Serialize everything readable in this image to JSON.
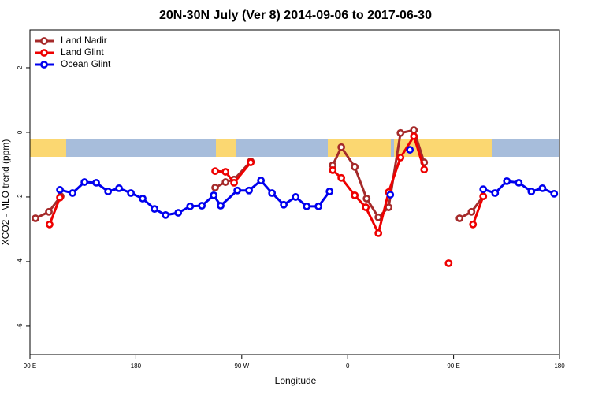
{
  "chart_data": {
    "type": "line",
    "title": "20N-30N July (Ver 8)   2014-09-06 to 2017-06-30",
    "x_label": "Longitude",
    "y_label": "XCO2 - MLO trend (ppm)",
    "xlim": [
      90,
      540
    ],
    "xticks": [
      {
        "value": 90,
        "label": "90 E"
      },
      {
        "value": 180,
        "label": "180"
      },
      {
        "value": 270,
        "label": "90 W"
      },
      {
        "value": 360,
        "label": "0"
      },
      {
        "value": 450,
        "label": "90 E"
      },
      {
        "value": 540,
        "label": "180"
      }
    ],
    "ylim": [
      -6.88,
      3.17
    ],
    "yticks": [
      2,
      0,
      -2,
      -4,
      -6
    ],
    "legend": "top-left",
    "series": [
      {
        "name": "Land Nadir",
        "color": "#a52a2a",
        "x": [
          94.7,
          106.1,
          116.1,
          null,
          247.4,
          256.2,
          263.5,
          277.6,
          null,
          347.3,
          354.6,
          366.0,
          376.1,
          386.1,
          394.8,
          404.9,
          416.3,
          425.0,
          null,
          455.1,
          465.2,
          475.2
        ],
        "values": [
          -2.66,
          -2.46,
          -1.98,
          null,
          -1.71,
          -1.54,
          -1.46,
          -0.9,
          null,
          -1.02,
          -0.46,
          -1.07,
          -2.05,
          -2.63,
          -2.32,
          -0.02,
          0.07,
          -0.93,
          null,
          -2.66,
          -2.46,
          -1.98
        ]
      },
      {
        "name": "Land Glint",
        "color": "#ee0000",
        "x": [
          106.7,
          115.5,
          null,
          247.4,
          256.2,
          263.5,
          277.6,
          null,
          347.3,
          354.6,
          366.0,
          375.4,
          386.1,
          394.8,
          404.9,
          416.3,
          425.0,
          null,
          445.8,
          null,
          466.5,
          475.2
        ],
        "values": [
          -2.85,
          -2.02,
          null,
          -1.2,
          -1.22,
          -1.56,
          -0.93,
          null,
          -1.17,
          -1.41,
          -1.95,
          -2.32,
          -3.12,
          -1.85,
          -0.78,
          -0.12,
          -1.15,
          null,
          -4.05,
          null,
          -2.85,
          -1.98
        ]
      },
      {
        "name": "Ocean Glint",
        "color": "#0000ee",
        "x": [
          115.5,
          126.2,
          136.3,
          146.3,
          156.4,
          165.7,
          175.8,
          185.8,
          195.9,
          205.3,
          216.0,
          226.1,
          236.1,
          246.2,
          252.1,
          266.2,
          276.2,
          286.3,
          295.7,
          305.7,
          315.8,
          325.2,
          335.2,
          344.6,
          null,
          396.2,
          null,
          412.9,
          null,
          475.2,
          485.3,
          495.3,
          505.4,
          516.1,
          525.5,
          535.5
        ],
        "values": [
          -1.78,
          -1.88,
          -1.54,
          -1.56,
          -1.83,
          -1.73,
          -1.88,
          -2.05,
          -2.37,
          -2.56,
          -2.49,
          -2.29,
          -2.27,
          -1.95,
          -2.27,
          -1.8,
          -1.8,
          -1.49,
          -1.88,
          -2.24,
          -2.0,
          -2.29,
          -2.29,
          -1.83,
          null,
          -1.93,
          null,
          -0.54,
          null,
          -1.76,
          -1.88,
          -1.51,
          -1.56,
          -1.83,
          -1.73,
          -1.9
        ]
      }
    ]
  }
}
